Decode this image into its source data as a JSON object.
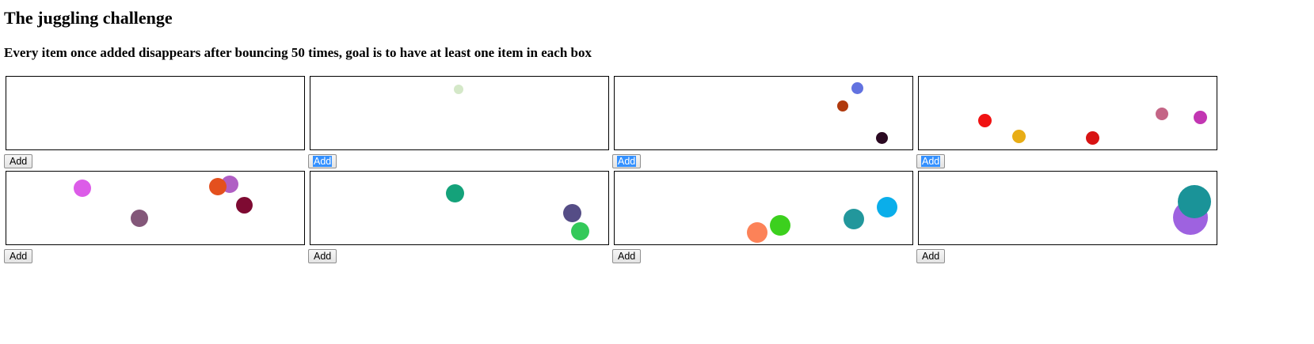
{
  "page": {
    "title": "The juggling challenge",
    "subtitle": "Every item once added disappears after bouncing 50 times, goal is to have at least one item in each box"
  },
  "boxes": [
    {
      "button_label": "Add",
      "selected": false,
      "balls": []
    },
    {
      "button_label": "Add",
      "selected": true,
      "balls": [
        {
          "color": "#d4e8c8"
        }
      ]
    },
    {
      "button_label": "Add",
      "selected": true,
      "balls": [
        {
          "color": "#6272e0"
        },
        {
          "color": "#b03a0e"
        },
        {
          "color": "#2b0a22"
        }
      ]
    },
    {
      "button_label": "Add",
      "selected": true,
      "balls": [
        {
          "color": "#f01212"
        },
        {
          "color": "#e8ad16"
        },
        {
          "color": "#d81414"
        },
        {
          "color": "#c46586"
        },
        {
          "color": "#c236b2"
        }
      ]
    },
    {
      "button_label": "Add",
      "selected": false,
      "balls": [
        {
          "color": "#dc5ce8"
        },
        {
          "color": "#835779"
        },
        {
          "color": "#b05fc4"
        },
        {
          "color": "#e4501e"
        },
        {
          "color": "#7e0a32"
        }
      ]
    },
    {
      "button_label": "Add",
      "selected": false,
      "balls": [
        {
          "color": "#14a27a"
        },
        {
          "color": "#554d86"
        },
        {
          "color": "#34c95a"
        }
      ]
    },
    {
      "button_label": "Add",
      "selected": false,
      "balls": [
        {
          "color": "#fc8258"
        },
        {
          "color": "#3cd01e"
        },
        {
          "color": "#22979c"
        },
        {
          "color": "#0aaeea"
        }
      ]
    },
    {
      "button_label": "Add",
      "selected": false,
      "balls": [
        {
          "color": "#9e62e0"
        },
        {
          "color": "#1a9398"
        }
      ]
    }
  ]
}
